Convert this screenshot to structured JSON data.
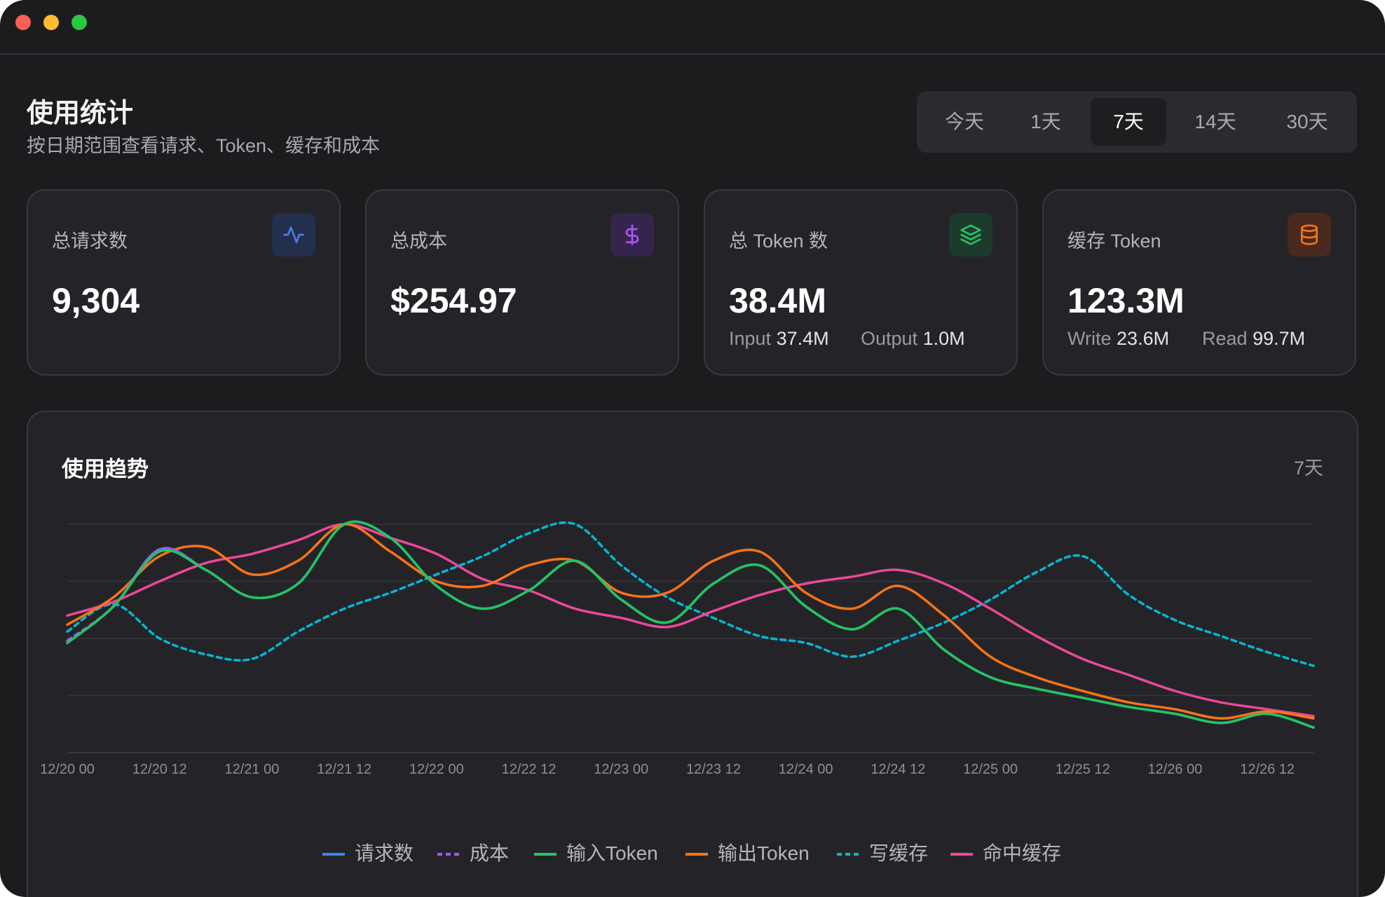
{
  "header": {
    "title": "使用统计",
    "subtitle": "按日期范围查看请求、Token、缓存和成本"
  },
  "range_selector": {
    "options": [
      "今天",
      "1天",
      "7天",
      "14天",
      "30天"
    ],
    "selected": "7天"
  },
  "cards": [
    {
      "label": "总请求数",
      "value": "9,304",
      "icon": "activity-icon",
      "color": "#4b7bec"
    },
    {
      "label": "总成本",
      "value": "$254.97",
      "icon": "dollar-icon",
      "color": "#a855f7"
    },
    {
      "label": "总 Token 数",
      "value": "38.4M",
      "icon": "layers-icon",
      "color": "#22c55e",
      "sub": [
        {
          "label": "Input",
          "value": "37.4M"
        },
        {
          "label": "Output",
          "value": "1.0M"
        }
      ]
    },
    {
      "label": "缓存 Token",
      "value": "123.3M",
      "icon": "database-icon",
      "color": "#f97316",
      "sub": [
        {
          "label": "Write",
          "value": "23.6M"
        },
        {
          "label": "Read",
          "value": "99.7M"
        }
      ]
    }
  ],
  "chart": {
    "title": "使用趋势",
    "range_label": "7天"
  },
  "chart_data": {
    "type": "line",
    "x": [
      "12/20 00",
      "12/20 06",
      "12/20 12",
      "12/20 18",
      "12/21 00",
      "12/21 06",
      "12/21 12",
      "12/21 18",
      "12/22 00",
      "12/22 06",
      "12/22 12",
      "12/22 18",
      "12/23 00",
      "12/23 06",
      "12/23 12",
      "12/23 18",
      "12/24 00",
      "12/24 06",
      "12/24 12",
      "12/24 18",
      "12/25 00",
      "12/25 06",
      "12/25 12",
      "12/25 18",
      "12/26 00",
      "12/26 06",
      "12/26 12",
      "12/26 18"
    ],
    "x_tick_labels": [
      "12/20 00",
      "12/20 12",
      "12/21 00",
      "12/21 12",
      "12/22 00",
      "12/22 12",
      "12/23 00",
      "12/23 12",
      "12/24 00",
      "12/24 12",
      "12/25 00",
      "12/25 12",
      "12/26 00",
      "12/26 12"
    ],
    "ylim": [
      0,
      100
    ],
    "grid": true,
    "legend_position": "bottom",
    "series": [
      {
        "name": "请求数",
        "color": "#3b82f6",
        "dash": false,
        "values": [
          48,
          64,
          89,
          80,
          68,
          74,
          100,
          94,
          73,
          63,
          71,
          84,
          67,
          57,
          74,
          82,
          64,
          54,
          63,
          45,
          33,
          28,
          24,
          20,
          17,
          13,
          17,
          11
        ]
      },
      {
        "name": "成本",
        "color": "#a855f7",
        "dash": true,
        "values": [
          49,
          64,
          89,
          80,
          68,
          74,
          100,
          94,
          73,
          63,
          71,
          84,
          67,
          57,
          74,
          82,
          64,
          54,
          63,
          45,
          33,
          28,
          24,
          20,
          17,
          13,
          17,
          11
        ]
      },
      {
        "name": "输入Token",
        "color": "#22c55e",
        "dash": false,
        "values": [
          48,
          64,
          88,
          80,
          68,
          74,
          100,
          94,
          73,
          63,
          71,
          84,
          67,
          57,
          74,
          82,
          64,
          54,
          63,
          45,
          33,
          28,
          24,
          20,
          17,
          13,
          17,
          11
        ]
      },
      {
        "name": "输出Token",
        "color": "#f97316",
        "dash": false,
        "values": [
          56,
          68,
          86,
          90,
          78,
          84,
          100,
          88,
          75,
          73,
          82,
          84,
          70,
          70,
          84,
          88,
          70,
          63,
          73,
          60,
          42,
          33,
          27,
          22,
          19,
          15,
          18,
          15
        ]
      },
      {
        "name": "写缓存",
        "color": "#06b6d4",
        "dash": true,
        "values": [
          53,
          65,
          50,
          43,
          41,
          53,
          63,
          70,
          78,
          86,
          96,
          100,
          82,
          68,
          59,
          51,
          48,
          42,
          49,
          57,
          67,
          79,
          86,
          69,
          58,
          51,
          44,
          38
        ]
      },
      {
        "name": "命中缓存",
        "color": "#ec4899",
        "dash": false,
        "values": [
          60,
          66,
          75,
          83,
          87,
          93,
          100,
          94,
          87,
          76,
          71,
          63,
          59,
          55,
          62,
          69,
          74,
          77,
          80,
          74,
          63,
          51,
          41,
          34,
          27,
          22,
          19,
          16
        ]
      }
    ]
  }
}
